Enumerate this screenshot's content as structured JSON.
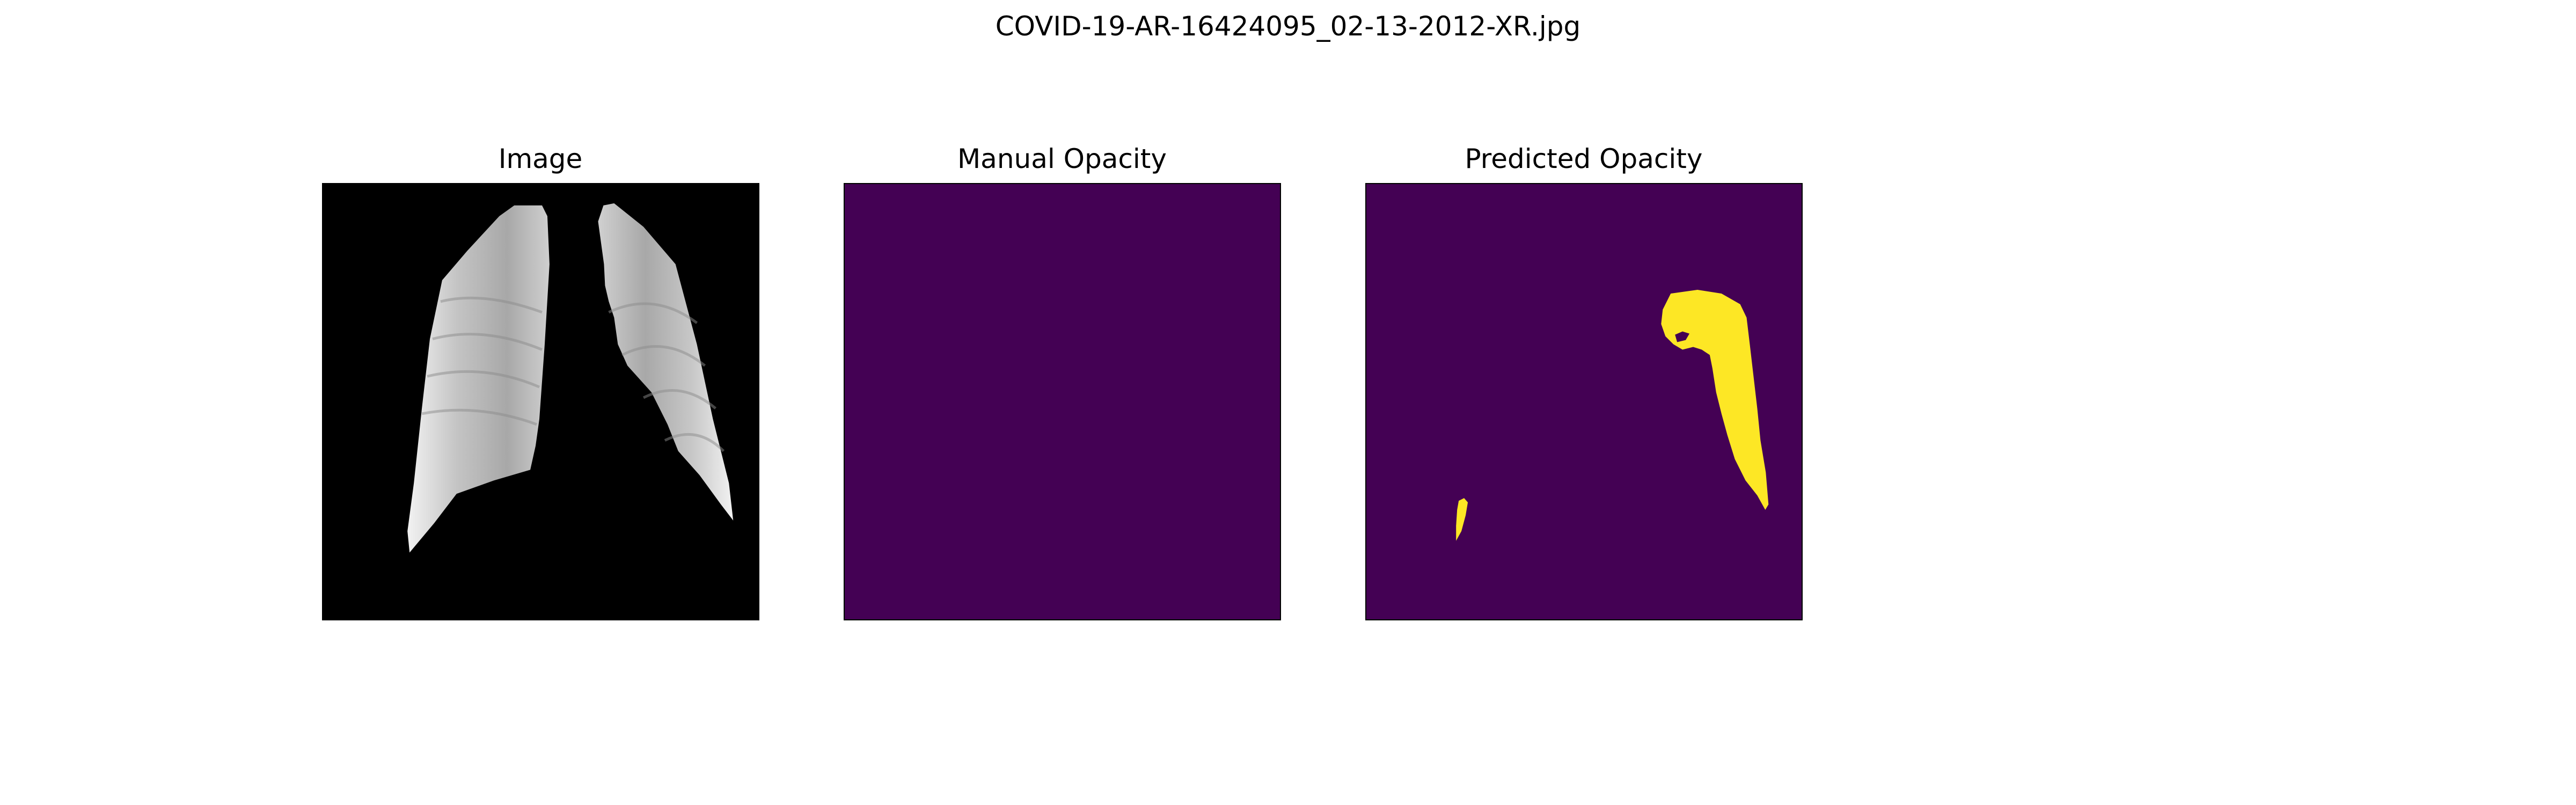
{
  "figure": {
    "title": "COVID-19-AR-16424095_02-13-2012-XR.jpg"
  },
  "panels": [
    {
      "title": "Image"
    },
    {
      "title": "Manual Opacity"
    },
    {
      "title": "Predicted Opacity"
    }
  ],
  "colors": {
    "xray_background": "#000000",
    "mask_background": "#440154",
    "mask_foreground": "#fde725",
    "lung_light": "#e6e6e6",
    "lung_dark": "#8c8c8c"
  }
}
